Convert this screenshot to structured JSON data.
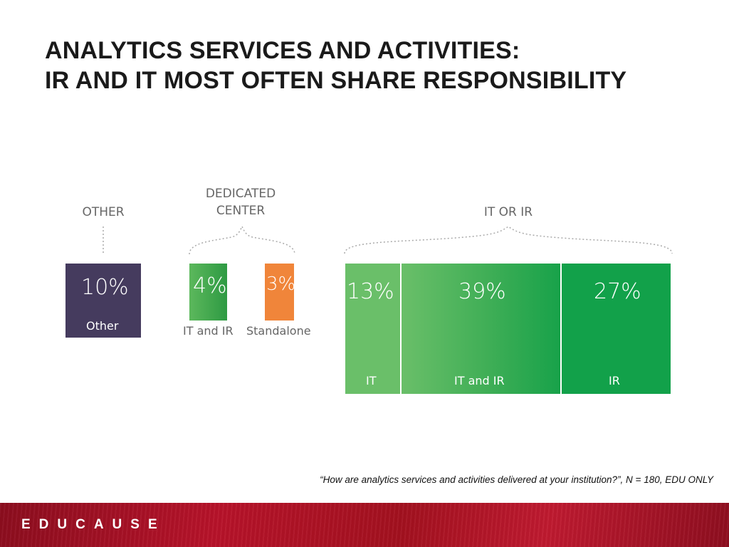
{
  "title": {
    "line1": "ANALYTICS SERVICES AND ACTIVITIES:",
    "line2": "IR AND IT MOST OFTEN SHARE RESPONSIBILITY"
  },
  "chart_data": {
    "type": "bar",
    "groups": [
      {
        "label": "OTHER",
        "segments": [
          {
            "value": 10,
            "display": "10%",
            "label": "Other",
            "color": "#453b5e"
          }
        ]
      },
      {
        "label": "DEDICATED\nCENTER",
        "segments": [
          {
            "value": 4,
            "display": "4%",
            "label": "IT and IR",
            "color": "#3ea04d"
          },
          {
            "value": 3,
            "display": "3%",
            "label": "Standalone",
            "color": "#f0853a"
          }
        ]
      },
      {
        "label": "IT OR IR",
        "segments": [
          {
            "value": 13,
            "display": "13%",
            "label": "IT",
            "color": "#6abf69"
          },
          {
            "value": 39,
            "display": "39%",
            "label": "IT and IR",
            "color": "#3aaa52"
          },
          {
            "value": 27,
            "display": "27%",
            "label": "IR",
            "color": "#12a14a"
          }
        ]
      }
    ]
  },
  "footnote": "“How are analytics services and activities delivered at your institution?”, N = 180, EDU ONLY",
  "footer": {
    "logo": "EDUCAUSE",
    "color": "#b01226"
  }
}
